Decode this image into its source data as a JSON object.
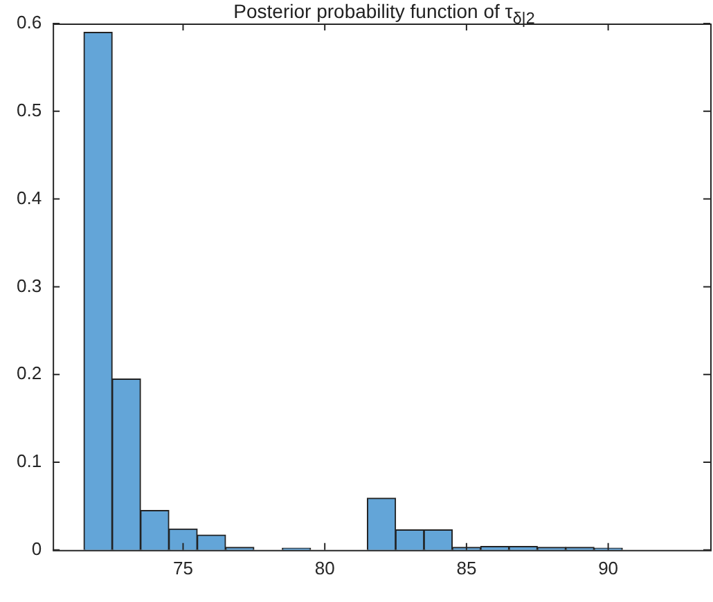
{
  "chart_data": {
    "type": "histogram",
    "title": "Posterior probability function of τ$_{δ|2}$",
    "bins": [
      71.5,
      72.5,
      73.5,
      74.5,
      75.5,
      76.5,
      77.5,
      78.5,
      79.5,
      80.5,
      81.5,
      82.5,
      83.5,
      84.5,
      85.5,
      86.5,
      87.5,
      88.5,
      89.5,
      90.5
    ],
    "values": [
      0.59,
      0.195,
      0.045,
      0.024,
      0.017,
      0.003,
      0,
      0.002,
      0,
      0,
      0.059,
      0.023,
      0.023,
      0.003,
      0.004,
      0.004,
      0.003,
      0.003,
      0.002
    ],
    "color": "#63a5d8",
    "xlim": [
      70.4,
      93.6
    ],
    "xticks": [
      75,
      80,
      85,
      90
    ],
    "ylim": [
      0,
      0.6
    ],
    "yticks": [
      0,
      0.1,
      0.2,
      0.3,
      0.4,
      0.5,
      0.6
    ],
    "grid": false,
    "legend": false
  }
}
